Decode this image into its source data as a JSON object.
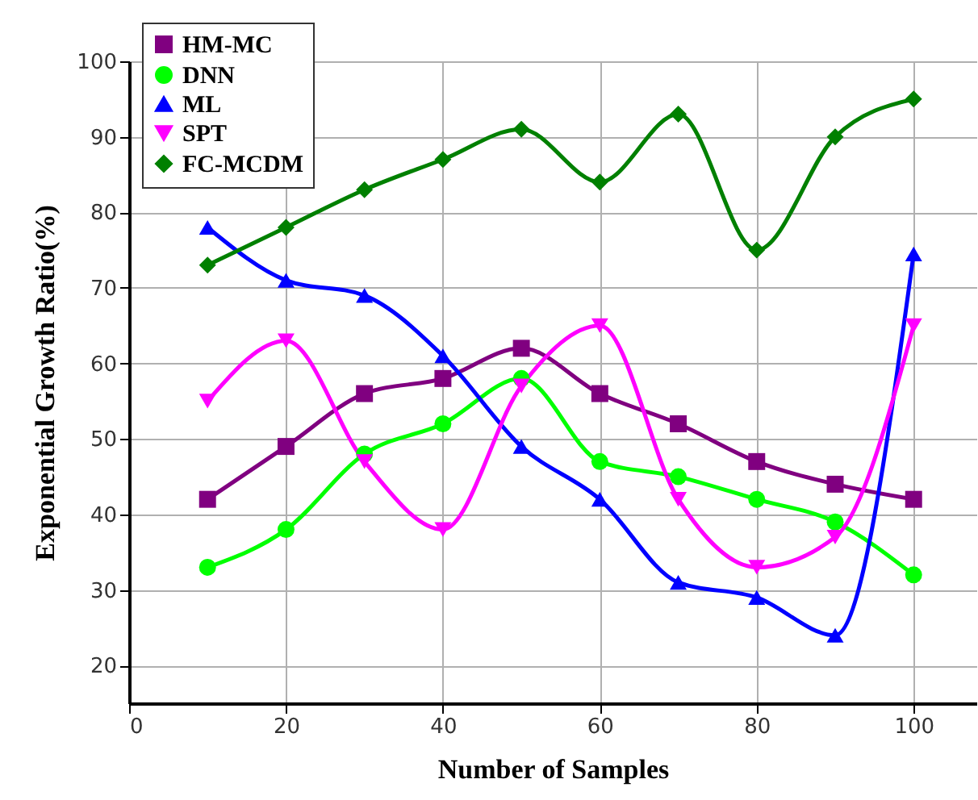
{
  "chart_data": {
    "type": "line",
    "xlabel": "Number of Samples",
    "ylabel": "Exponential Growth Ratio(%)",
    "x": [
      10,
      20,
      30,
      40,
      50,
      60,
      70,
      80,
      90,
      100
    ],
    "series": [
      {
        "name": "HM-MC",
        "color": "#800080",
        "marker": "square",
        "values": [
          42,
          49,
          56,
          58,
          62,
          56,
          52,
          47,
          44,
          42
        ]
      },
      {
        "name": "DNN",
        "color": "#00ff00",
        "marker": "circle",
        "values": [
          33,
          38,
          48,
          52,
          58,
          47,
          45,
          42,
          39,
          32
        ]
      },
      {
        "name": "ML",
        "color": "#0000ff",
        "marker": "triangle",
        "values": [
          78,
          71,
          69,
          61,
          49,
          42,
          31,
          29,
          24,
          74.5
        ]
      },
      {
        "name": "SPT",
        "color": "#ff00ff",
        "marker": "triangle-down",
        "values": [
          55,
          63,
          47,
          38,
          57,
          65,
          42,
          33,
          37,
          65
        ]
      },
      {
        "name": "FC-MCDM",
        "color": "#008000",
        "marker": "diamond",
        "values": [
          73,
          78,
          83,
          87,
          91,
          84,
          93,
          75,
          90,
          95
        ]
      }
    ],
    "xlim": [
      0,
      108
    ],
    "xticks": [
      0,
      20,
      40,
      60,
      80,
      100
    ],
    "ylim": [
      15,
      100
    ],
    "yticks": [
      20,
      30,
      40,
      50,
      60,
      70,
      80,
      90,
      100
    ],
    "grid": true,
    "legend": "top left",
    "line_style": "solid"
  }
}
